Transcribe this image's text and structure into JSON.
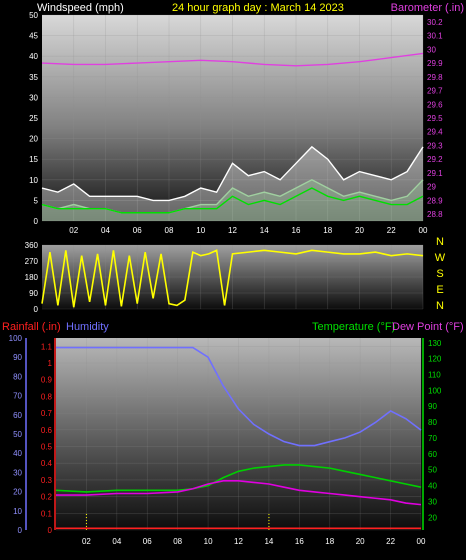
{
  "chart_data": [
    {
      "type": "line",
      "title": "24 hour graph day : March 14 2023",
      "left_label": "Windspeed (mph)",
      "right_label": "Barometer (.in)",
      "x_ticks": [
        "02",
        "04",
        "06",
        "08",
        "10",
        "12",
        "14",
        "16",
        "18",
        "20",
        "22",
        "00"
      ],
      "y_left_ticks": [
        0,
        5,
        10,
        15,
        20,
        25,
        30,
        35,
        40,
        45,
        50
      ],
      "y_right_ticks": [
        28.8,
        28.9,
        29,
        29.1,
        29.2,
        29.3,
        29.4,
        29.5,
        29.6,
        29.7,
        29.8,
        29.9,
        30,
        30.1,
        30.2
      ],
      "ylim_left": [
        0,
        50
      ],
      "ylim_right": [
        28.75,
        30.25
      ],
      "series": [
        {
          "axis": "right",
          "color": "#e040e0",
          "x": [
            0,
            2,
            4,
            6,
            8,
            10,
            12,
            14,
            16,
            18,
            20,
            22,
            24
          ],
          "y": [
            29.9,
            29.89,
            29.89,
            29.9,
            29.91,
            29.92,
            29.91,
            29.89,
            29.88,
            29.89,
            29.91,
            29.94,
            29.97
          ]
        },
        {
          "axis": "left",
          "color": "#ffffff",
          "fill": "#ffffff",
          "x": [
            0,
            1,
            2,
            3,
            4,
            5,
            6,
            7,
            8,
            9,
            10,
            11,
            12,
            13,
            14,
            15,
            16,
            17,
            18,
            19,
            20,
            21,
            22,
            23,
            24
          ],
          "y": [
            8,
            7,
            9,
            6,
            6,
            6,
            6,
            5,
            5,
            6,
            8,
            7,
            14,
            11,
            12,
            10,
            14,
            18,
            15,
            10,
            12,
            11,
            10,
            12,
            18
          ]
        },
        {
          "axis": "left",
          "color": "#a0d0a0",
          "fill": "#a0d0a0",
          "x": [
            0,
            1,
            2,
            3,
            4,
            5,
            6,
            7,
            8,
            9,
            10,
            11,
            12,
            13,
            14,
            15,
            16,
            17,
            18,
            19,
            20,
            21,
            22,
            23,
            24
          ],
          "y": [
            4,
            3,
            4,
            3,
            3,
            2,
            2,
            2,
            2,
            3,
            4,
            4,
            8,
            6,
            7,
            6,
            8,
            10,
            8,
            6,
            7,
            6,
            5,
            6,
            10
          ]
        },
        {
          "axis": "left",
          "color": "#00e000",
          "x": [
            0,
            1,
            2,
            3,
            4,
            5,
            6,
            7,
            8,
            9,
            10,
            11,
            12,
            13,
            14,
            15,
            16,
            17,
            18,
            19,
            20,
            21,
            22,
            23,
            24
          ],
          "y": [
            4,
            3,
            3,
            3,
            3,
            2,
            2,
            2,
            2,
            3,
            3,
            3,
            6,
            4,
            5,
            4,
            6,
            8,
            6,
            5,
            6,
            5,
            4,
            4,
            6
          ]
        }
      ]
    },
    {
      "type": "line",
      "y_left_ticks": [
        0,
        90,
        180,
        270,
        360
      ],
      "ylim": [
        0,
        360
      ],
      "compass": [
        "N",
        "W",
        "S",
        "E",
        "N"
      ],
      "series": [
        {
          "color": "#ffff00",
          "x": [
            0,
            0.5,
            1,
            1.5,
            2,
            2.5,
            3,
            3.5,
            4,
            4.5,
            5,
            5.5,
            6,
            6.5,
            7,
            7.5,
            8,
            8.5,
            9,
            9.5,
            10,
            10.5,
            11,
            11.5,
            12,
            13,
            14,
            15,
            16,
            17,
            18,
            19,
            20,
            21,
            22,
            23,
            24
          ],
          "y": [
            30,
            320,
            20,
            330,
            10,
            300,
            40,
            310,
            20,
            330,
            15,
            300,
            30,
            320,
            60,
            310,
            30,
            20,
            50,
            320,
            300,
            310,
            330,
            20,
            310,
            320,
            330,
            320,
            310,
            330,
            320,
            310,
            310,
            320,
            300,
            310,
            300
          ]
        }
      ]
    },
    {
      "type": "line",
      "left_label": "Rainfall (.in)",
      "humidity_label": "Humidity",
      "right_label": "Temperature (°F)",
      "right_label2": "Dew Point (°F)",
      "x_ticks": [
        "02",
        "04",
        "06",
        "08",
        "10",
        "12",
        "14",
        "16",
        "18",
        "20",
        "22",
        "00"
      ],
      "y_rain_ticks": [
        0,
        0.1,
        0.2,
        0.3,
        0.4,
        0.5,
        0.6,
        0.7,
        0.8,
        0.9,
        1,
        1.1
      ],
      "y_hum_ticks": [
        0,
        10,
        20,
        30,
        40,
        50,
        60,
        70,
        80,
        90,
        100
      ],
      "y_temp_ticks": [
        20,
        30,
        40,
        50,
        60,
        70,
        80,
        90,
        100,
        110,
        120,
        130
      ],
      "ylim_rain": [
        0,
        1.15
      ],
      "ylim_hum": [
        0,
        100
      ],
      "ylim_temp": [
        12,
        133
      ],
      "series": [
        {
          "name": "Humidity",
          "axis": "hum",
          "color": "#7070ff",
          "x": [
            0,
            2,
            4,
            6,
            8,
            9,
            10,
            11,
            12,
            13,
            14,
            15,
            16,
            17,
            18,
            19,
            20,
            21,
            22,
            23,
            24
          ],
          "y": [
            95,
            95,
            95,
            95,
            95,
            95,
            90,
            75,
            63,
            55,
            50,
            46,
            44,
            44,
            46,
            48,
            51,
            56,
            62,
            58,
            52
          ]
        },
        {
          "name": "Temperature",
          "axis": "temp",
          "color": "#00d000",
          "x": [
            0,
            2,
            4,
            6,
            8,
            9,
            10,
            11,
            12,
            13,
            14,
            15,
            16,
            17,
            18,
            19,
            20,
            21,
            22,
            23,
            24
          ],
          "y": [
            37,
            36,
            37,
            37,
            37,
            38,
            40,
            45,
            49,
            51,
            52,
            53,
            53,
            52,
            51,
            49,
            47,
            45,
            43,
            41,
            39
          ]
        },
        {
          "name": "Dew Point",
          "axis": "temp",
          "color": "#e000e0",
          "x": [
            0,
            2,
            4,
            6,
            8,
            9,
            10,
            11,
            12,
            13,
            14,
            15,
            16,
            17,
            18,
            19,
            20,
            21,
            22,
            23,
            24
          ],
          "y": [
            34,
            34,
            35,
            35,
            36,
            38,
            41,
            43,
            43,
            42,
            41,
            39,
            37,
            36,
            35,
            34,
            33,
            32,
            31,
            29,
            28
          ]
        },
        {
          "name": "Rainfall",
          "axis": "rain",
          "color": "#ff2020",
          "x": [
            0,
            24
          ],
          "y": [
            0.01,
            0.01
          ]
        }
      ]
    }
  ],
  "colors": {
    "title": "#ffff00",
    "windspeed_label": "#ffffff",
    "barometer_label": "#e040e0",
    "rain_label": "#ff2020",
    "humidity_label": "#7070ff",
    "temp_label": "#00e000",
    "dew_label": "#e040e0",
    "right_axis_temp": "#00e000",
    "left_axis_hum": "#7070ff",
    "left_axis_rain": "#ff2020"
  }
}
